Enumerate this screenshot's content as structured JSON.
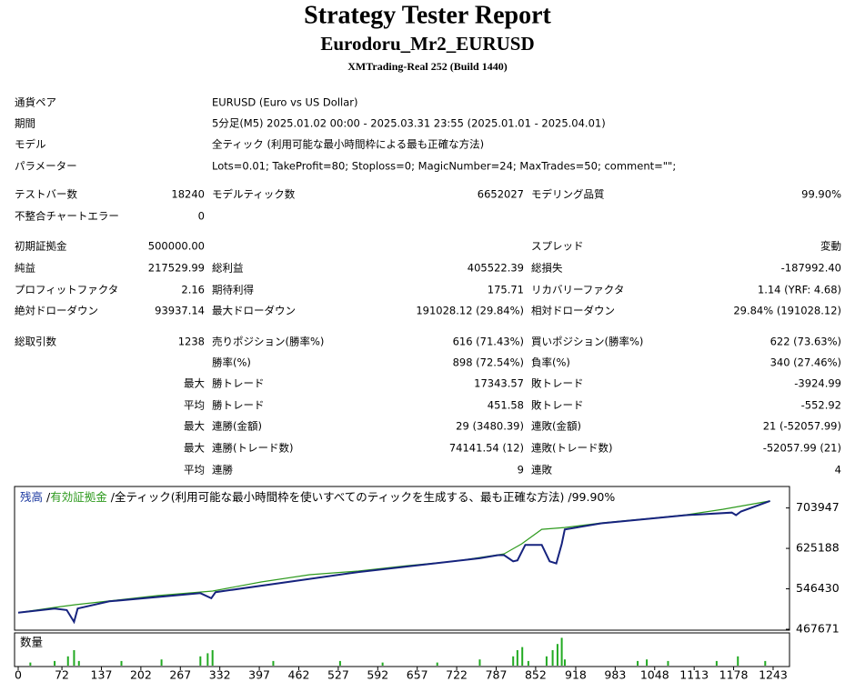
{
  "header": {
    "title": "Strategy Tester Report",
    "subtitle": "Eurodoru_Mr2_EURUSD",
    "build": "XMTrading-Real 252 (Build 1440)"
  },
  "info": [
    [
      "通貨ペア",
      "EURUSD (Euro vs US Dollar)"
    ],
    [
      "期間",
      "5分足(M5) 2025.01.02 00:00 - 2025.03.31 23:55 (2025.01.01 - 2025.04.01)"
    ],
    [
      "モデル",
      "全ティック (利用可能な最小時間枠による最も正確な方法)"
    ],
    [
      "パラメーター",
      "Lots=0.01; TakeProfit=80; Stoploss=0; MagicNumber=24; MaxTrades=50; comment=\"\";"
    ]
  ],
  "stats": [
    [
      "テストバー数",
      "18240",
      "モデルティック数",
      "6652027",
      "モデリング品質",
      "99.90%"
    ],
    [
      "不整合チャートエラー",
      "0",
      null,
      null,
      null,
      null
    ],
    [
      "初期証拠金",
      "500000.00",
      null,
      null,
      "スプレッド",
      "変動"
    ],
    [
      "純益",
      "217529.99",
      "総利益",
      "405522.39",
      "総損失",
      "-187992.40"
    ],
    [
      "プロフィットファクタ",
      "2.16",
      "期待利得",
      "175.71",
      "リカバリーファクタ",
      "1.14 (YRF: 4.68)"
    ],
    [
      "絶対ドローダウン",
      "93937.14",
      "最大ドローダウン",
      "191028.12 (29.84%)",
      "相対ドローダウン",
      "29.84% (191028.12)"
    ],
    [
      "総取引数",
      "1238",
      "売りポジション(勝率%)",
      "616 (71.43%)",
      "買いポジション(勝率%)",
      "622 (73.63%)"
    ],
    [
      null,
      null,
      "勝率(%)",
      "898 (72.54%)",
      "負率(%)",
      "340 (27.46%)"
    ],
    [
      null,
      "最大",
      "勝トレード",
      "17343.57",
      "敗トレード",
      "-3924.99"
    ],
    [
      null,
      "平均",
      "勝トレード",
      "451.58",
      "敗トレード",
      "-552.92"
    ],
    [
      null,
      "最大",
      "連勝(金額)",
      "29 (3480.39)",
      "連敗(金額)",
      "21 (-52057.99)"
    ],
    [
      null,
      "最大",
      "連勝(トレード数)",
      "74141.54 (12)",
      "連敗(トレード数)",
      "-52057.99 (21)"
    ],
    [
      null,
      "平均",
      "連勝",
      "9",
      "連敗",
      "4"
    ]
  ],
  "chart": {
    "type": "line",
    "legend_separator": "/",
    "legend_text": "全ティック(利用可能な最小時間枠を使いすべてのティックを生成する、最も正確な方法)",
    "legend_value": "99.90%",
    "xlim": [
      0,
      1270
    ],
    "ylim": [
      467671,
      744000
    ],
    "xticks": [
      0,
      72,
      137,
      202,
      267,
      332,
      397,
      462,
      527,
      592,
      657,
      722,
      787,
      852,
      918,
      983,
      1048,
      1113,
      1178,
      1243
    ],
    "yticks": [
      703947,
      625188,
      546430,
      467671
    ],
    "series": [
      {
        "name": "有効証拠金",
        "color": "#2e9a1e",
        "x": [
          0,
          60,
          94,
          229,
          320,
          400,
          480,
          560,
          640,
          720,
          800,
          829,
          862,
          900,
          960,
          1040,
          1100,
          1160,
          1238
        ],
        "values": [
          500000,
          510150,
          515460,
          533160,
          542010,
          559710,
          573870,
          580950,
          591570,
          600420,
          614580,
          634050,
          662370,
          665910,
          674760,
          683610,
          690690,
          701310,
          717530
        ]
      },
      {
        "name": "残高",
        "color": "#16237e",
        "x": [
          0,
          60,
          80,
          92,
          98,
          150,
          300,
          318,
          325,
          560,
          760,
          790,
          800,
          815,
          822,
          835,
          862,
          875,
          886,
          895,
          900,
          960,
          1040,
          1100,
          1175,
          1182,
          1190,
          1238
        ],
        "values": [
          500000,
          508000,
          505000,
          482000,
          508000,
          522000,
          538000,
          528000,
          540000,
          579000,
          606000,
          612000,
          612000,
          600000,
          602000,
          632000,
          632000,
          600000,
          596000,
          634000,
          662000,
          674000,
          683000,
          690000,
          695000,
          690000,
          697000,
          717530
        ]
      }
    ],
    "volume": {
      "label": "数量",
      "color": "#22aa22",
      "ylim": [
        0,
        20
      ],
      "x": [
        20,
        60,
        82,
        92,
        100,
        170,
        236,
        300,
        312,
        320,
        420,
        530,
        600,
        690,
        760,
        815,
        822,
        830,
        840,
        870,
        880,
        888,
        895,
        900,
        1020,
        1035,
        1070,
        1150,
        1185,
        1230
      ],
      "values": [
        2,
        3,
        6,
        10,
        3,
        3,
        4,
        6,
        8,
        10,
        3,
        3,
        2,
        2,
        4,
        6,
        10,
        12,
        3,
        6,
        10,
        14,
        18,
        4,
        3,
        4,
        3,
        3,
        6,
        3
      ]
    }
  }
}
